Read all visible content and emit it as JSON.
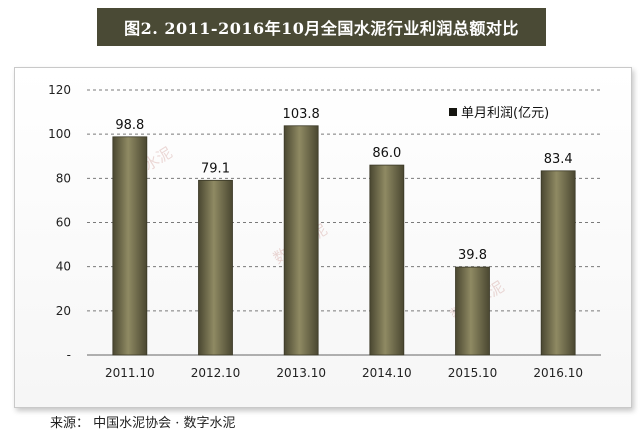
{
  "title": "图2.  2011-2016年10月全国水泥行业利润总额对比",
  "source": "来源：  中国水泥协会 · 数字水泥",
  "watermark": "数字水泥",
  "colors": {
    "bar_light": "#8f8a63",
    "bar_dark": "#4a4731",
    "title_bg": "#4a4a35",
    "grid": "#7a7a7a"
  },
  "chart_data": {
    "type": "bar",
    "categories": [
      "2011.10",
      "2012.10",
      "2013.10",
      "2014.10",
      "2015.10",
      "2016.10"
    ],
    "series": [
      {
        "name": "单月利润(亿元)",
        "values": [
          98.8,
          79.1,
          103.8,
          86.0,
          39.8,
          83.4
        ]
      }
    ],
    "value_labels": [
      "98.8",
      "79.1",
      "103.8",
      "86.0",
      "39.8",
      "83.4"
    ],
    "ylim": [
      0,
      120
    ],
    "yticks": [
      0,
      20,
      40,
      60,
      80,
      100,
      120
    ],
    "ytick_labels": [
      "-",
      "20",
      "40",
      "60",
      "80",
      "100",
      "120"
    ],
    "grid": true,
    "legend_position": "top-right"
  }
}
